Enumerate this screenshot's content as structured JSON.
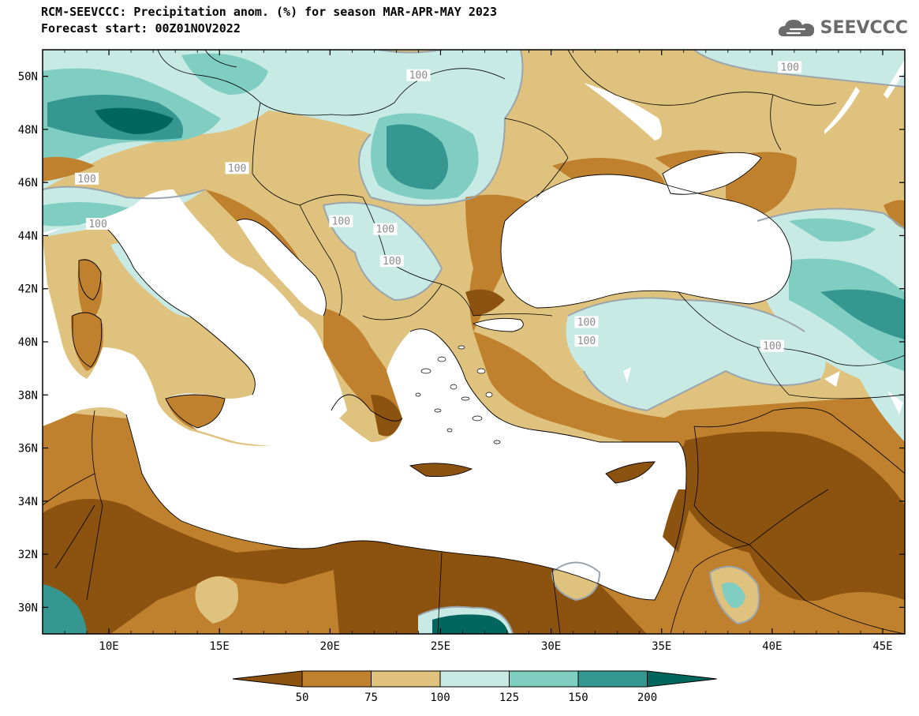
{
  "header": {
    "title_line1": "RCM-SEEVCCC: Precipitation anom. (%) for season MAR-APR-MAY 2023",
    "title_line2": "Forecast start: 00Z01NOV2022",
    "logo_text": "SEEVCCC"
  },
  "map": {
    "lon_range": [
      7,
      46
    ],
    "lat_range": [
      29,
      51
    ],
    "x_ticks": [
      "10E",
      "15E",
      "20E",
      "25E",
      "30E",
      "35E",
      "40E",
      "45E"
    ],
    "x_tick_values": [
      10,
      15,
      20,
      25,
      30,
      35,
      40,
      45
    ],
    "y_ticks": [
      "50N",
      "48N",
      "46N",
      "44N",
      "42N",
      "40N",
      "38N",
      "36N",
      "34N",
      "32N",
      "30N"
    ],
    "y_tick_values": [
      50,
      48,
      46,
      44,
      42,
      40,
      38,
      36,
      34,
      32,
      30
    ],
    "contour_label_text": "100",
    "contour_labels": [
      {
        "lon": 24.0,
        "lat": 50.0
      },
      {
        "lon": 40.8,
        "lat": 50.3
      },
      {
        "lon": 15.8,
        "lat": 46.5
      },
      {
        "lon": 9.0,
        "lat": 46.1
      },
      {
        "lon": 9.5,
        "lat": 44.4
      },
      {
        "lon": 20.5,
        "lat": 44.5
      },
      {
        "lon": 22.5,
        "lat": 44.2
      },
      {
        "lon": 22.8,
        "lat": 43.0
      },
      {
        "lon": 31.6,
        "lat": 40.7
      },
      {
        "lon": 31.6,
        "lat": 40.0
      },
      {
        "lon": 40.0,
        "lat": 39.8
      }
    ]
  },
  "colorbar": {
    "labels": [
      "50",
      "75",
      "100",
      "125",
      "150",
      "200"
    ],
    "colors": [
      "#8c520f",
      "#bf812d",
      "#dfc27d",
      "#c7eae5",
      "#80cdc1",
      "#35978f",
      "#01665e"
    ]
  },
  "palette": {
    "sea": "#ffffff",
    "dry_strong": "#8c520f",
    "dry": "#bf812d",
    "dry_light": "#dfc27d",
    "wet_light": "#c7eae5",
    "wet": "#80cdc1",
    "wet_strong": "#35978f",
    "wet_very": "#01665e"
  }
}
